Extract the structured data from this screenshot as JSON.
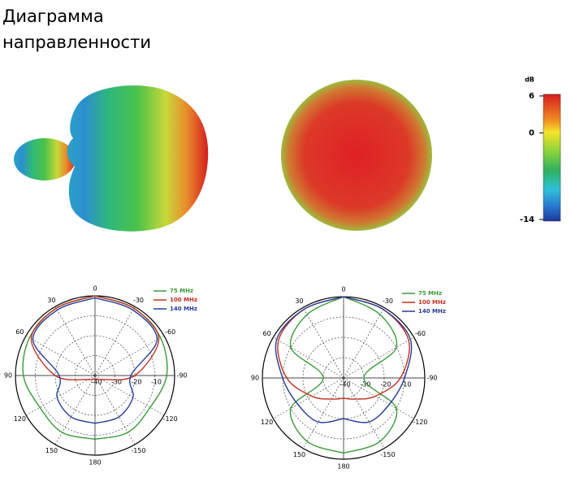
{
  "title": [
    "Диаграмма",
    "направленности"
  ],
  "colorbar": {
    "label": "dB",
    "ticks": [
      6,
      0,
      -14
    ],
    "lim": [
      -14,
      6
    ]
  },
  "chart_data": [
    {
      "type": "polar",
      "angles": [
        0,
        30,
        60,
        90,
        120,
        150,
        180
      ],
      "angle_labels": [
        0,
        30,
        -30,
        60,
        -60,
        90,
        -90,
        120,
        -120,
        150,
        -150,
        180
      ],
      "rlim": [
        -40,
        0
      ],
      "rticks": [
        -40,
        -30,
        -20,
        -10
      ],
      "series": [
        {
          "name": "75 MHz",
          "color": "#3a9a3a",
          "values": [
            0,
            -1,
            -2,
            -4,
            -8,
            -7,
            -8
          ]
        },
        {
          "name": "100 MHz",
          "color": "#c0301e",
          "values": [
            0,
            -1,
            -3,
            -20,
            -36,
            -38,
            -38
          ]
        },
        {
          "name": "140 MHz",
          "color": "#283c9a",
          "values": [
            -1,
            -2,
            -4,
            -22,
            -18,
            -16,
            -16
          ]
        }
      ]
    },
    {
      "type": "polar",
      "angles": [
        0,
        30,
        60,
        90,
        120,
        150,
        180
      ],
      "angle_labels": [
        0,
        30,
        -30,
        60,
        -60,
        90,
        -90,
        120,
        -120,
        150,
        -150,
        180
      ],
      "rlim": [
        -40,
        0
      ],
      "rticks": [
        -40,
        -30,
        -20,
        -10
      ],
      "series": [
        {
          "name": "75 MHz",
          "color": "#3a9a3a",
          "values": [
            0,
            -4,
            -10,
            -30,
            -10,
            -4,
            -3
          ]
        },
        {
          "name": "100 MHz",
          "color": "#c0301e",
          "values": [
            0,
            -1,
            -3,
            -12,
            -22,
            -28,
            -30
          ]
        },
        {
          "name": "140 MHz",
          "color": "#283c9a",
          "values": [
            0,
            -1,
            -2,
            -10,
            -14,
            -15,
            -20
          ]
        }
      ]
    }
  ]
}
